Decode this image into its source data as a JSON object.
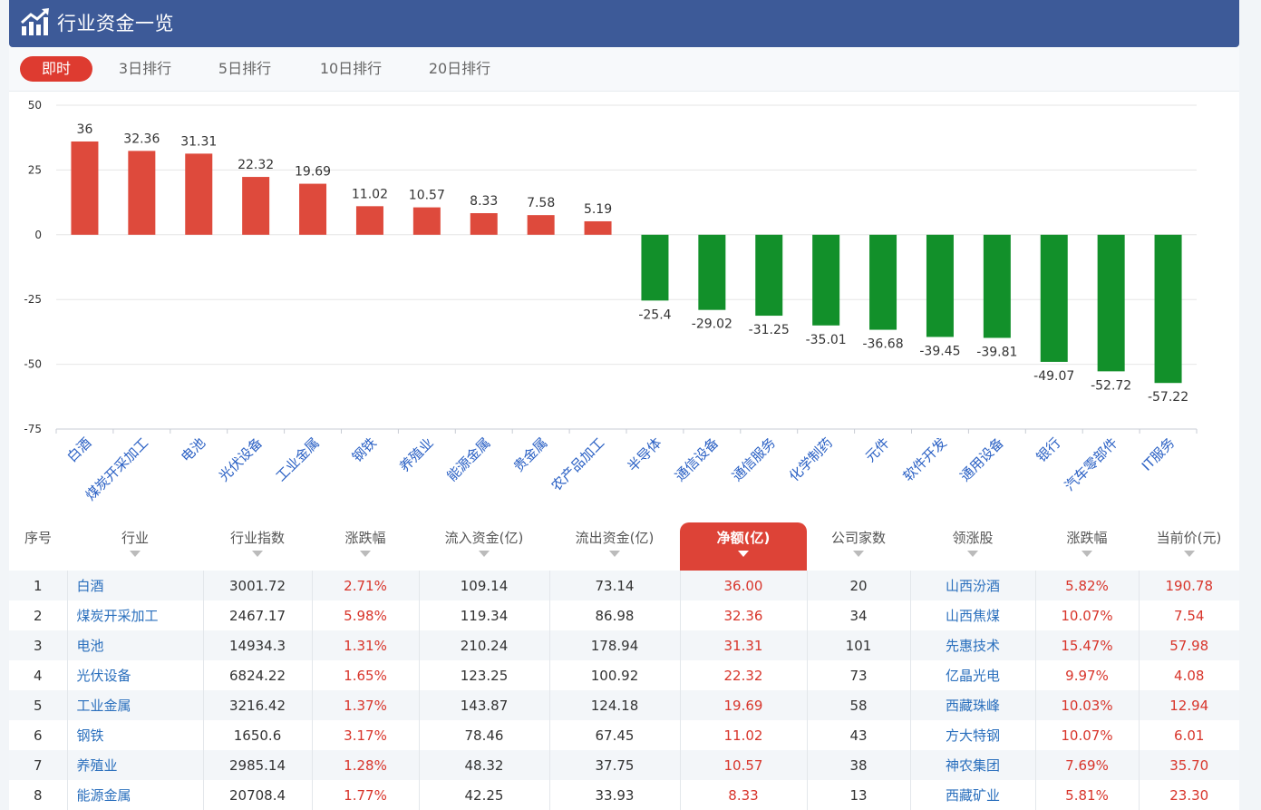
{
  "header": {
    "title": "行业资金一览",
    "icon": "bar-chart-trend-icon",
    "bg_color": "#3d5a98"
  },
  "tabs": [
    {
      "label": "即时",
      "active": true
    },
    {
      "label": "3日排行",
      "active": false
    },
    {
      "label": "5日排行",
      "active": false
    },
    {
      "label": "10日排行",
      "active": false
    },
    {
      "label": "20日排行",
      "active": false
    }
  ],
  "colors": {
    "positive": "#de4a3c",
    "negative": "#12902a",
    "accent": "#de3b30"
  },
  "chart_data": {
    "type": "bar",
    "categories": [
      "白酒",
      "煤炭开采加工",
      "电池",
      "光伏设备",
      "工业金属",
      "钢铁",
      "养殖业",
      "能源金属",
      "贵金属",
      "农产品加工",
      "半导体",
      "通信设备",
      "通信服务",
      "化学制药",
      "元件",
      "软件开发",
      "通用设备",
      "银行",
      "汽车零部件",
      "IT服务"
    ],
    "values": [
      36,
      32.36,
      31.31,
      22.32,
      19.69,
      11.02,
      10.57,
      8.33,
      7.58,
      5.19,
      -25.4,
      -29.02,
      -31.25,
      -35.01,
      -36.68,
      -39.45,
      -39.81,
      -49.07,
      -52.72,
      -57.22
    ],
    "value_labels": [
      "36",
      "32.36",
      "31.31",
      "22.32",
      "19.69",
      "11.02",
      "10.57",
      "8.33",
      "7.58",
      "5.19",
      "-25.4",
      "-29.02",
      "-31.25",
      "-35.01",
      "-36.68",
      "-39.45",
      "-39.81",
      "-49.07",
      "-52.72",
      "-57.22"
    ],
    "yticks": [
      50,
      25,
      0,
      -25,
      -50,
      -75
    ],
    "ylim": [
      -75,
      50
    ],
    "grid": true
  },
  "table": {
    "columns": [
      {
        "label": "序号",
        "sortable": false
      },
      {
        "label": "行业",
        "sortable": true
      },
      {
        "label": "行业指数",
        "sortable": true
      },
      {
        "label": "涨跌幅",
        "sortable": true
      },
      {
        "label": "流入资金(亿)",
        "sortable": true
      },
      {
        "label": "流出资金(亿)",
        "sortable": true
      },
      {
        "label": "净额(亿)",
        "sortable": true,
        "active": true
      },
      {
        "label": "公司家数",
        "sortable": true
      },
      {
        "label": "领涨股",
        "sortable": true
      },
      {
        "label": "涨跌幅",
        "sortable": true
      },
      {
        "label": "当前价(元)",
        "sortable": true
      }
    ],
    "rows": [
      [
        "1",
        "白酒",
        "3001.72",
        "2.71%",
        "109.14",
        "73.14",
        "36.00",
        "20",
        "山西汾酒",
        "5.82%",
        "190.78"
      ],
      [
        "2",
        "煤炭开采加工",
        "2467.17",
        "5.98%",
        "119.34",
        "86.98",
        "32.36",
        "34",
        "山西焦煤",
        "10.07%",
        "7.54"
      ],
      [
        "3",
        "电池",
        "14934.3",
        "1.31%",
        "210.24",
        "178.94",
        "31.31",
        "101",
        "先惠技术",
        "15.47%",
        "57.98"
      ],
      [
        "4",
        "光伏设备",
        "6824.22",
        "1.65%",
        "123.25",
        "100.92",
        "22.32",
        "73",
        "亿晶光电",
        "9.97%",
        "4.08"
      ],
      [
        "5",
        "工业金属",
        "3216.42",
        "1.37%",
        "143.87",
        "124.18",
        "19.69",
        "58",
        "西藏珠峰",
        "10.03%",
        "12.94"
      ],
      [
        "6",
        "钢铁",
        "1650.6",
        "3.17%",
        "78.46",
        "67.45",
        "11.02",
        "43",
        "方大特钢",
        "10.07%",
        "6.01"
      ],
      [
        "7",
        "养殖业",
        "2985.14",
        "1.28%",
        "48.32",
        "37.75",
        "10.57",
        "38",
        "神农集团",
        "7.69%",
        "35.70"
      ],
      [
        "8",
        "能源金属",
        "20708.4",
        "1.77%",
        "42.25",
        "33.93",
        "8.33",
        "13",
        "西藏矿业",
        "5.81%",
        "23.30"
      ]
    ]
  }
}
